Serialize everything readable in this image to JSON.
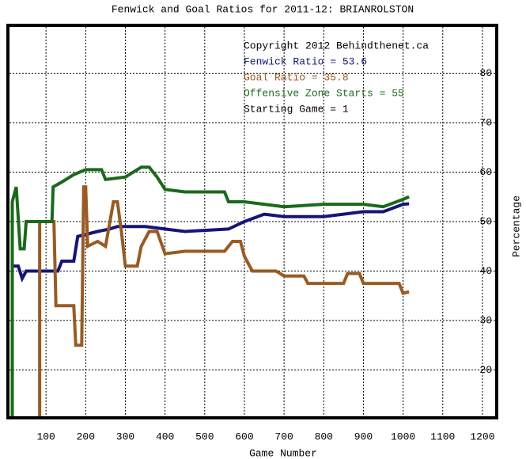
{
  "chart_data": {
    "type": "line",
    "title": "Fenwick and Goal Ratios for 2011-12: BRIANROLSTON",
    "x_label": "Game Number",
    "y_label": "Percentage",
    "annotations": [
      "Copyright 2012 Behindthenet.ca",
      "Starting Game = 1"
    ],
    "xlim": [
      0,
      1240
    ],
    "ylim": [
      10,
      90
    ],
    "xticks": [
      100,
      200,
      300,
      400,
      500,
      600,
      700,
      800,
      900,
      1000,
      1100,
      1200
    ],
    "yticks": [
      20,
      30,
      40,
      50,
      60,
      70,
      80
    ],
    "grid": true,
    "series": [
      {
        "name": "Fenwick Ratio = 53.6",
        "color": "#14147a",
        "x": [
          15,
          30,
          40,
          50,
          60,
          130,
          140,
          170,
          180,
          230,
          260,
          280,
          350,
          400,
          450,
          560,
          600,
          650,
          700,
          800,
          900,
          950,
          1000,
          1015
        ],
        "values": [
          41,
          41,
          38.5,
          40,
          40,
          40,
          42,
          42,
          47,
          48,
          48.5,
          49,
          49,
          48.5,
          48,
          48.5,
          50,
          51.5,
          51,
          51,
          52,
          52,
          53.5,
          53.6
        ]
      },
      {
        "name": "Goal Ratio = 35.8",
        "color": "#9a5a22",
        "x": [
          84,
          84,
          120,
          125,
          170,
          175,
          190,
          195,
          200,
          205,
          230,
          250,
          270,
          280,
          290,
          300,
          330,
          340,
          360,
          380,
          400,
          450,
          550,
          570,
          590,
          600,
          620,
          680,
          700,
          750,
          760,
          850,
          860,
          890,
          900,
          990,
          1000,
          1015
        ],
        "values": [
          10,
          50,
          50,
          33,
          33,
          25,
          25,
          57,
          57,
          45,
          46,
          45,
          54,
          54,
          48,
          41,
          41,
          45,
          48,
          48,
          43.5,
          44,
          44,
          46,
          46,
          43,
          40,
          40,
          39,
          39,
          37.5,
          37.5,
          39.5,
          39.5,
          37.5,
          37.5,
          35.5,
          35.8
        ]
      },
      {
        "name": "Offensive Zone Starts = 55",
        "color": "#1a6a1a",
        "x": [
          15,
          15,
          25,
          35,
          45,
          50,
          115,
          118,
          140,
          170,
          200,
          240,
          250,
          300,
          340,
          360,
          380,
          400,
          450,
          550,
          560,
          600,
          650,
          700,
          800,
          900,
          950,
          1000,
          1015
        ],
        "values": [
          10,
          54,
          57,
          44.5,
          44.5,
          50,
          50,
          57,
          58,
          59.5,
          60.5,
          60.5,
          58.5,
          59,
          61,
          61,
          59,
          56.5,
          56,
          56,
          54,
          54,
          53.5,
          53,
          53.5,
          53.5,
          53,
          54.5,
          55
        ]
      }
    ]
  }
}
